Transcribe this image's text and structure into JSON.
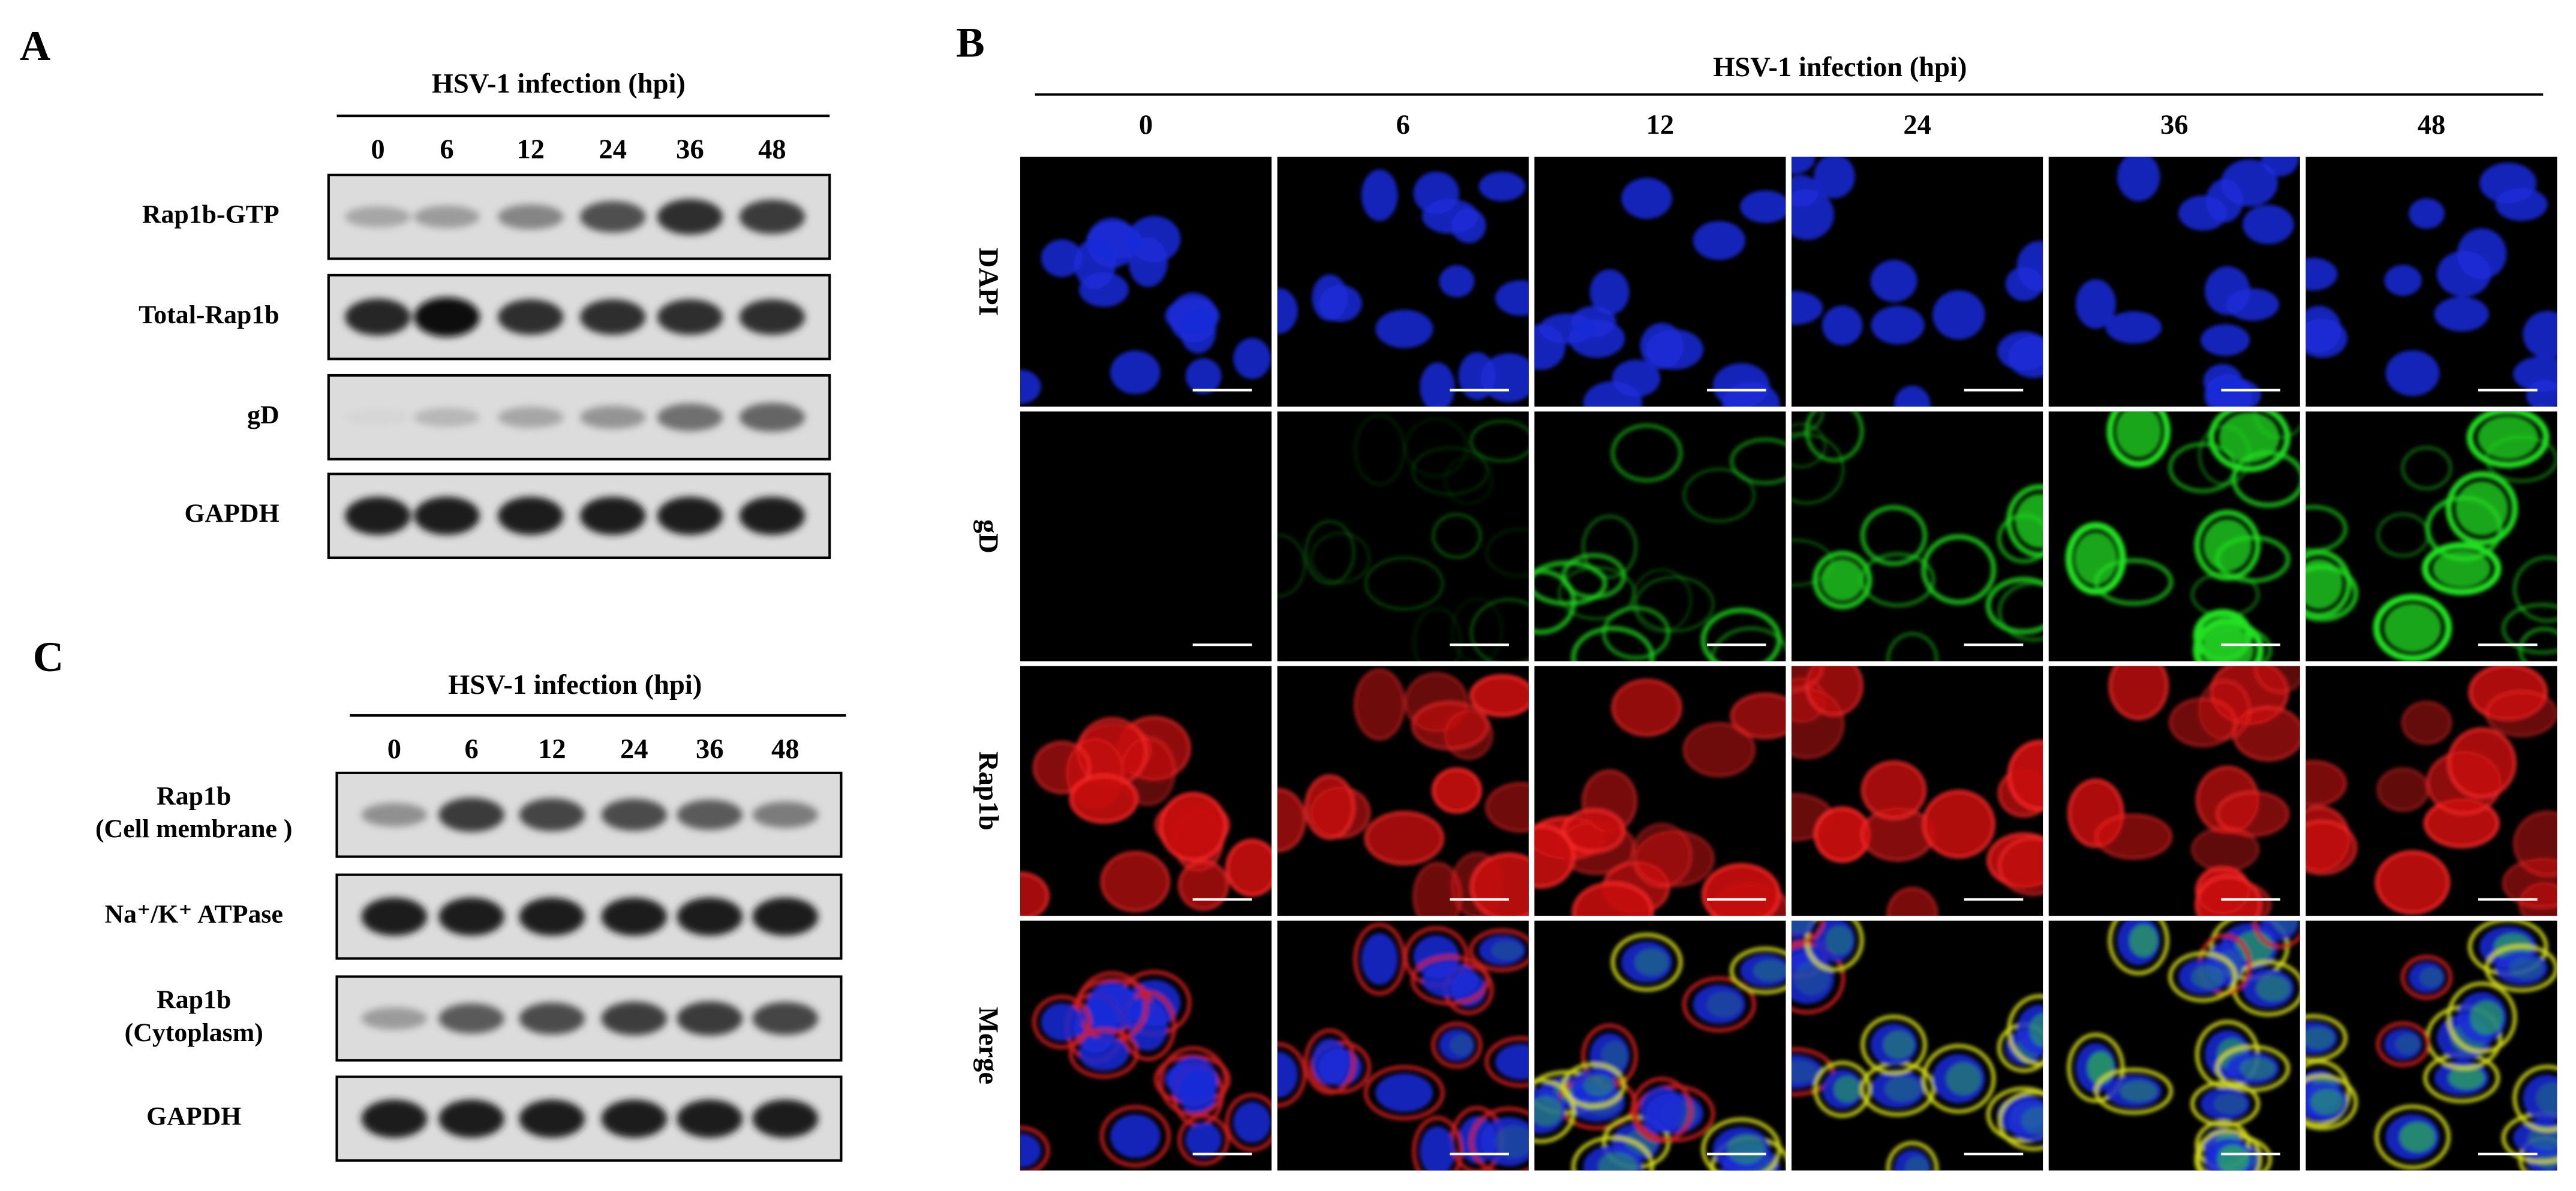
{
  "panel_a": {
    "label": "A",
    "title": "HSV-1 infection (hpi)",
    "timepoints": [
      "0",
      "6",
      "12",
      "24",
      "36",
      "48"
    ],
    "rows": [
      "Rap1b-GTP",
      "Total-Rap1b",
      "gD",
      "GAPDH"
    ]
  },
  "panel_b": {
    "label": "B",
    "title": "HSV-1 infection (hpi)",
    "timepoints": [
      "0",
      "6",
      "12",
      "24",
      "36",
      "48"
    ],
    "rows": [
      "DAPI",
      "gD",
      "Rap1b",
      "Merge"
    ]
  },
  "panel_c": {
    "label": "C",
    "title": "HSV-1 infection (hpi)",
    "timepoints": [
      "0",
      "6",
      "12",
      "24",
      "36",
      "48"
    ],
    "rows": [
      {
        "lines": [
          "Rap1b",
          "(Cell membrane )"
        ]
      },
      {
        "lines": [
          "Na⁺/K⁺ ATPase"
        ]
      },
      {
        "lines": [
          "Rap1b",
          "(Cytoplasm)"
        ]
      },
      {
        "lines": [
          "GAPDH"
        ]
      }
    ]
  }
}
